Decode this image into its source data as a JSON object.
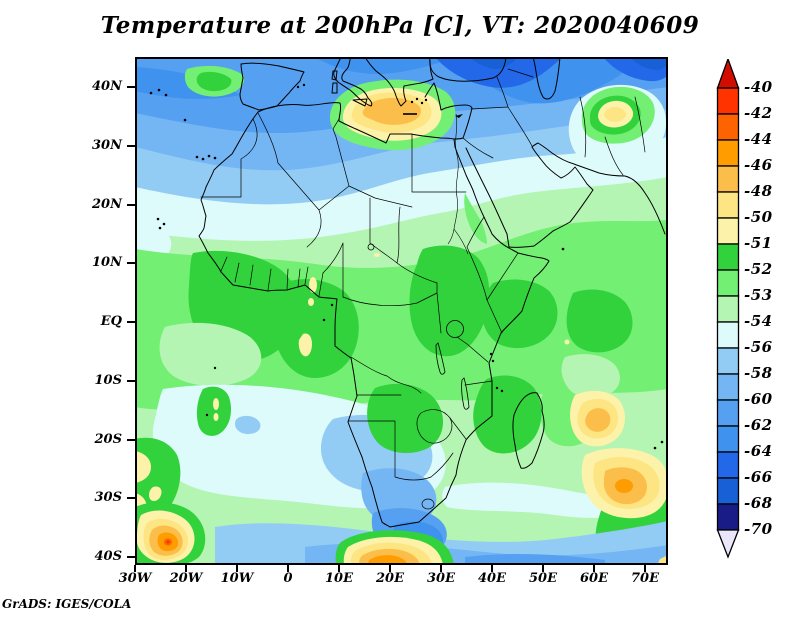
{
  "title": "Temperature at 200hPa [C], VT: 2020040609",
  "attribution": "GrADS: IGES/COLA",
  "palette": {
    "above": "#d40b00",
    "c40_42": "#fe3300",
    "c42_44": "#fe6301",
    "c44_46": "#fe9c00",
    "c46_48": "#fcbe4a",
    "c48_50": "#fee584",
    "c50_51": "#fdf2a9",
    "c51_52": "#31d23b",
    "c52_53": "#73ef73",
    "c53_54": "#b5f5b3",
    "c54_56": "#defbfb",
    "c56_58": "#92ccf5",
    "c58_60": "#74b5f4",
    "c60_62": "#55a0f0",
    "c62_64": "#3f92ee",
    "c64_66": "#2268e8",
    "c66_68": "#1760d6",
    "c68_70": "#191c87",
    "below": "#eae7fb"
  },
  "chart_data": {
    "type": "heatmap",
    "title": "Temperature at 200hPa [C], VT: 2020040609",
    "variable": "Temperature",
    "level": "200hPa",
    "units": "C",
    "valid_time": "2020040609",
    "projection": "lat-lon map of Africa / surrounding oceans",
    "x_axis": {
      "label": "longitude",
      "ticks": [
        "30W",
        "20W",
        "10W",
        "0",
        "10E",
        "20E",
        "30E",
        "40E",
        "50E",
        "60E",
        "70E"
      ],
      "range_deg": [
        -30,
        75
      ]
    },
    "y_axis": {
      "label": "latitude",
      "ticks": [
        "40N",
        "30N",
        "20N",
        "10N",
        "EQ",
        "10S",
        "20S",
        "30S",
        "40S"
      ],
      "range_deg": [
        45,
        -41
      ]
    },
    "colorbar": {
      "levels": [
        -40,
        -42,
        -44,
        -46,
        -48,
        -50,
        -51,
        -52,
        -53,
        -54,
        -56,
        -58,
        -60,
        -62,
        -64,
        -66,
        -68,
        -70
      ],
      "cell_colors": [
        "#fe3300",
        "#fe6301",
        "#fe9c00",
        "#fcbe4a",
        "#fee584",
        "#fdf2a9",
        "#31d23b",
        "#73ef73",
        "#b5f5b3",
        "#defbfb",
        "#92ccf5",
        "#74b5f4",
        "#55a0f0",
        "#3f92ee",
        "#2268e8",
        "#1760d6",
        "#191c87"
      ],
      "above_color": "#d40b00",
      "below_color": "#eae7fb",
      "extend_above": "> -40",
      "extend_below": "< -70"
    },
    "features": [
      {
        "region": "Mediterranean and North Africa coast (30-45N)",
        "approx_temp_C": "-56 to -64"
      },
      {
        "region": "Eastern Europe / Black Sea / Caspian area",
        "approx_temp_C": "-62 to -68"
      },
      {
        "region": "Aegean Sea warm anomaly (~22-28E, 33-38N)",
        "approx_temp_C": "-46 to -48"
      },
      {
        "region": "Afghanistan warm spot (~60-65E, 32-37N)",
        "approx_temp_C": "-48 to -51"
      },
      {
        "region": "Sahara transition band (18-28N)",
        "approx_temp_C": "-53 to -58"
      },
      {
        "region": "Central Africa / Sahel / Guinea belt (5S-15N)",
        "approx_temp_C": "-51 to -53"
      },
      {
        "region": "Small warm spots over Cameroon / Gabon (~10E, 3S-5N)",
        "approx_temp_C": "-50 to -51"
      },
      {
        "region": "South Atlantic subtropics (10-30S, west of 20E)",
        "approx_temp_C": "-53 to -56"
      },
      {
        "region": "South Africa and Southern Ocean (30-41S)",
        "approx_temp_C": "-56 to -64"
      },
      {
        "region": "South-west Atlantic warm eddy (~25W, 37S)",
        "approx_temp_C": "-40 to -48"
      },
      {
        "region": "Warm blob south of the Cape (~25-30E, 40S)",
        "approx_temp_C": "-44 to -48"
      },
      {
        "region": "South-west Indian Ocean warm band (~60-75E, 20-33S)",
        "approx_temp_C": "-44 to -50"
      }
    ]
  }
}
